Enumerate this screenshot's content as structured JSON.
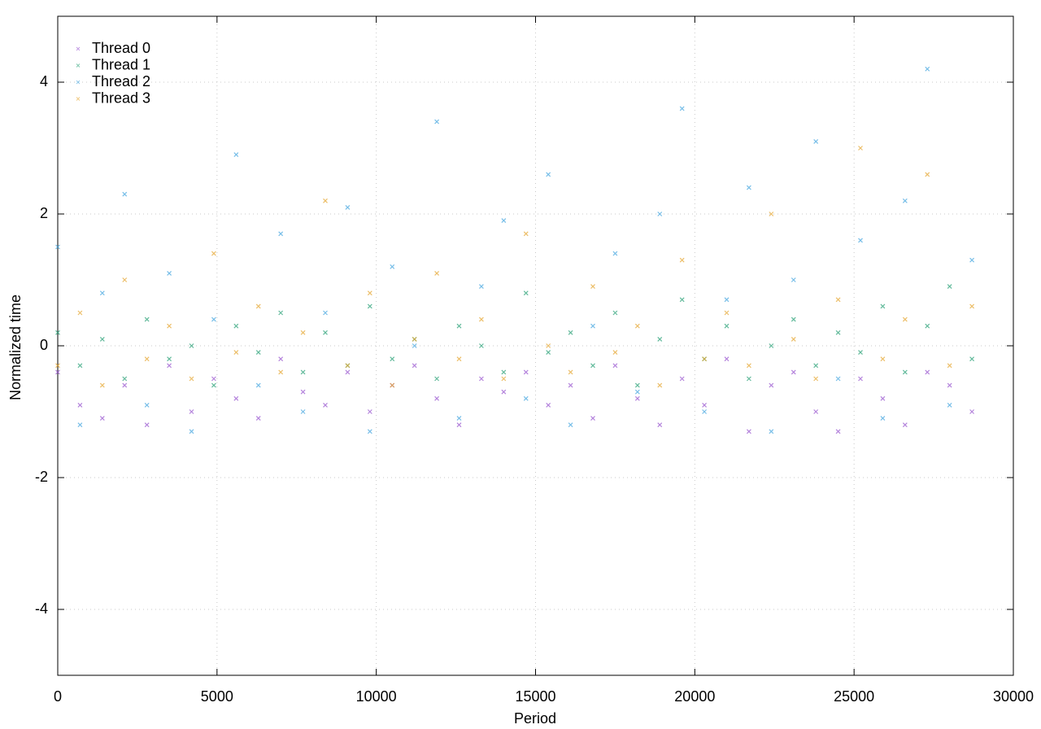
{
  "chart_data": {
    "type": "scatter",
    "xlabel": "Period",
    "ylabel": "Normalized time",
    "x": [
      0,
      700,
      1400,
      2100,
      2800,
      3500,
      4200,
      4900,
      5600,
      6300,
      7000,
      7700,
      8400,
      9100,
      9800,
      10500,
      11200,
      11900,
      12600,
      13300,
      14000,
      14700,
      15400,
      16100,
      16800,
      17500,
      18200,
      18900,
      19600,
      20300,
      21000,
      21700,
      22400,
      23100,
      23800,
      24500,
      25200,
      25900,
      26600,
      27300,
      28000,
      28700
    ],
    "series": [
      {
        "name": "Thread 0",
        "color": "#9b59d0",
        "values": [
          -0.4,
          -0.9,
          -1.1,
          -0.6,
          -1.2,
          -0.3,
          -1.0,
          -0.5,
          -0.8,
          -1.1,
          -0.2,
          -0.7,
          -0.9,
          -0.4,
          -1.0,
          -0.6,
          -0.3,
          -0.8,
          -1.2,
          -0.5,
          -0.7,
          -0.4,
          -0.9,
          -0.6,
          -1.1,
          -0.3,
          -0.8,
          -1.2,
          -0.5,
          -0.9,
          -0.2,
          -1.3,
          -0.6,
          -0.4,
          -1.0,
          -1.3,
          -0.5,
          -0.8,
          -1.2,
          -0.4,
          -0.6,
          -1.0
        ]
      },
      {
        "name": "Thread 1",
        "color": "#2ea37a",
        "values": [
          0.2,
          -0.3,
          0.1,
          -0.5,
          0.4,
          -0.2,
          0.0,
          -0.6,
          0.3,
          -0.1,
          0.5,
          -0.4,
          0.2,
          -0.3,
          0.6,
          -0.2,
          0.1,
          -0.5,
          0.3,
          0.0,
          -0.4,
          0.8,
          -0.1,
          0.2,
          -0.3,
          0.5,
          -0.6,
          0.1,
          0.7,
          -0.2,
          0.3,
          -0.5,
          0.0,
          0.4,
          -0.3,
          0.2,
          -0.1,
          0.6,
          -0.4,
          0.3,
          0.9,
          -0.2
        ]
      },
      {
        "name": "Thread 2",
        "color": "#4aa8e0",
        "values": [
          1.5,
          -1.2,
          0.8,
          2.3,
          -0.9,
          1.1,
          -1.3,
          0.4,
          2.9,
          -0.6,
          1.7,
          -1.0,
          0.5,
          2.1,
          -1.3,
          1.2,
          0.0,
          3.4,
          -1.1,
          0.9,
          1.9,
          -0.8,
          2.6,
          -1.2,
          0.3,
          1.4,
          -0.7,
          2.0,
          3.6,
          -1.0,
          0.7,
          2.4,
          -1.3,
          1.0,
          3.1,
          -0.5,
          1.6,
          -1.1,
          2.2,
          4.2,
          -0.9,
          1.3
        ]
      },
      {
        "name": "Thread 3",
        "color": "#e6a836",
        "values": [
          -0.3,
          0.5,
          -0.6,
          1.0,
          -0.2,
          0.3,
          -0.5,
          1.4,
          -0.1,
          0.6,
          -0.4,
          0.2,
          2.2,
          -0.3,
          0.8,
          -0.6,
          0.1,
          1.1,
          -0.2,
          0.4,
          -0.5,
          1.7,
          0.0,
          -0.4,
          0.9,
          -0.1,
          0.3,
          -0.6,
          1.3,
          -0.2,
          0.5,
          -0.3,
          2.0,
          0.1,
          -0.5,
          0.7,
          3.0,
          -0.2,
          0.4,
          2.6,
          -0.3,
          0.6
        ]
      }
    ],
    "xlim": [
      0,
      30000
    ],
    "xticks": [
      0,
      5000,
      10000,
      15000,
      20000,
      25000,
      30000
    ],
    "ylim": [
      -5,
      5
    ],
    "yticks": [
      -4,
      -2,
      0,
      2,
      4
    ],
    "grid": true,
    "legend": "top-left"
  }
}
